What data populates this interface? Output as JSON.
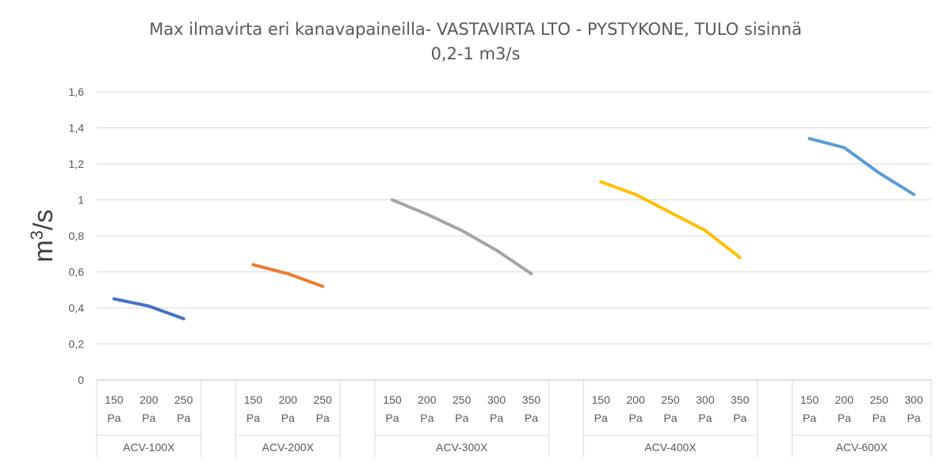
{
  "chart_data": {
    "type": "line",
    "title_line1": "Max ilmavirta eri kanavapaineilla- VASTAVIRTA LTO - PYSTYKONE, TULO sisinnä",
    "title_line2": "0,2-1 m3/s",
    "ylabel_base": "m",
    "ylabel_sup": "3",
    "ylabel_rest": "/s",
    "ylim": [
      0,
      1.6
    ],
    "yticks": [
      "0",
      "0,2",
      "0,4",
      "0,6",
      "0,8",
      "1",
      "1,2",
      "1,4",
      "1,6"
    ],
    "grid": true,
    "groups": [
      {
        "name": "ACV-100X",
        "color": "#4472C4",
        "categories": [
          [
            "150",
            "Pa"
          ],
          [
            "200",
            "Pa"
          ],
          [
            "250",
            "Pa"
          ]
        ],
        "values": [
          0.45,
          0.41,
          0.34
        ]
      },
      {
        "name": "ACV-200X",
        "color": "#ED7D31",
        "categories": [
          [
            "150",
            "Pa"
          ],
          [
            "200",
            "Pa"
          ],
          [
            "250",
            "Pa"
          ]
        ],
        "values": [
          0.64,
          0.59,
          0.52
        ]
      },
      {
        "name": "ACV-300X",
        "color": "#A5A5A5",
        "categories": [
          [
            "150",
            "Pa"
          ],
          [
            "200",
            "Pa"
          ],
          [
            "250",
            "Pa"
          ],
          [
            "300",
            "Pa"
          ],
          [
            "350",
            "Pa"
          ]
        ],
        "values": [
          1.0,
          0.92,
          0.83,
          0.72,
          0.59
        ]
      },
      {
        "name": "ACV-400X",
        "color": "#FFC000",
        "categories": [
          [
            "150",
            "Pa"
          ],
          [
            "200",
            "Pa"
          ],
          [
            "250",
            "Pa"
          ],
          [
            "300",
            "Pa"
          ],
          [
            "350",
            "Pa"
          ]
        ],
        "values": [
          1.1,
          1.03,
          0.93,
          0.83,
          0.68
        ]
      },
      {
        "name": "ACV-600X",
        "color": "#5B9BD5",
        "categories": [
          [
            "150",
            "Pa"
          ],
          [
            "200",
            "Pa"
          ],
          [
            "250",
            "Pa"
          ],
          [
            "300",
            "Pa"
          ]
        ],
        "values": [
          1.34,
          1.29,
          1.15,
          1.03
        ]
      }
    ]
  }
}
